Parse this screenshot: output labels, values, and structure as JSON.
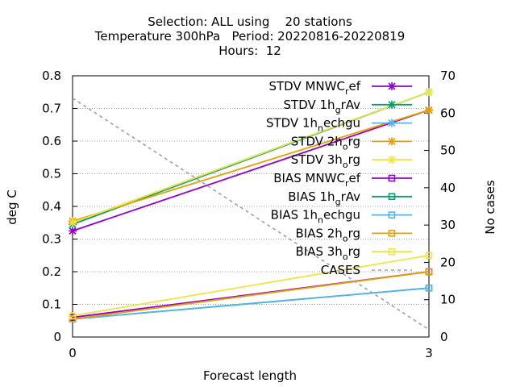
{
  "chart_data": {
    "type": "line",
    "title_lines": [
      "Selection: ALL using    20 stations",
      "Temperature 300hPa   Period: 20220816-20220819",
      "Hours:  12"
    ],
    "xlabel": "Forecast length",
    "ylabel": "deg C",
    "y2label": "No cases",
    "x": [
      0,
      3
    ],
    "xticks": [
      "0",
      "3"
    ],
    "ylim": [
      0,
      0.8
    ],
    "yticks": [
      "0",
      "0.1",
      "0.2",
      "0.3",
      "0.4",
      "0.5",
      "0.6",
      "0.7",
      "0.8"
    ],
    "y2lim": [
      0,
      70
    ],
    "y2ticks": [
      "0",
      "10",
      "20",
      "30",
      "40",
      "50",
      "60",
      "70"
    ],
    "grid": true,
    "legend_position": "top-right",
    "series": [
      {
        "name": "STDV MNWC_ref",
        "label": {
          "pre": "STDV MNWC",
          "sub": "r",
          "post": "ef"
        },
        "values": [
          0.325,
          0.695
        ],
        "color": "#9400d3",
        "marker": "x",
        "axis": "y1",
        "dash": false
      },
      {
        "name": "STDV 1h_grAv",
        "label": {
          "pre": "STDV 1h",
          "sub": "g",
          "post": "rAv"
        },
        "values": [
          0.345,
          0.75
        ],
        "color": "#009e73",
        "marker": "x",
        "axis": "y1",
        "dash": false
      },
      {
        "name": "STDV 1h_nechgu",
        "label": {
          "pre": "STDV 1h",
          "sub": "n",
          "post": "echgu"
        },
        "values": [
          0.35,
          0.75
        ],
        "color": "#56b4e9",
        "marker": "x",
        "axis": "y1",
        "dash": false
      },
      {
        "name": "STDV 2h_org",
        "label": {
          "pre": "STDV 2h",
          "sub": "o",
          "post": "rg"
        },
        "values": [
          0.355,
          0.695
        ],
        "color": "#e69f00",
        "marker": "x",
        "axis": "y1",
        "dash": false
      },
      {
        "name": "STDV 3h_org",
        "label": {
          "pre": "STDV 3h",
          "sub": "o",
          "post": "rg"
        },
        "values": [
          0.35,
          0.75
        ],
        "color": "#f0e442",
        "marker": "x",
        "axis": "y1",
        "dash": false
      },
      {
        "name": "BIAS MNWC_ref",
        "label": {
          "pre": "BIAS MNWC",
          "sub": "r",
          "post": "ef"
        },
        "values": [
          0.06,
          0.2
        ],
        "color": "#9400d3",
        "marker": "square",
        "axis": "y1",
        "dash": false
      },
      {
        "name": "BIAS 1h_grAv",
        "label": {
          "pre": "BIAS 1h",
          "sub": "g",
          "post": "rAv"
        },
        "values": [
          0.055,
          0.15
        ],
        "color": "#009e73",
        "marker": "square",
        "axis": "y1",
        "dash": false
      },
      {
        "name": "BIAS 1h_nechgu",
        "label": {
          "pre": "BIAS 1h",
          "sub": "n",
          "post": "echgu"
        },
        "values": [
          0.055,
          0.15
        ],
        "color": "#56b4e9",
        "marker": "square",
        "axis": "y1",
        "dash": false
      },
      {
        "name": "BIAS 2h_org",
        "label": {
          "pre": "BIAS 2h",
          "sub": "o",
          "post": "rg"
        },
        "values": [
          0.055,
          0.2
        ],
        "color": "#e69f00",
        "marker": "square",
        "axis": "y1",
        "dash": false
      },
      {
        "name": "BIAS 3h_org",
        "label": {
          "pre": "BIAS 3h",
          "sub": "o",
          "post": "rg"
        },
        "values": [
          0.065,
          0.25
        ],
        "color": "#f0e442",
        "marker": "square",
        "axis": "y1",
        "dash": false
      },
      {
        "name": "CASES",
        "label": {
          "pre": "CASES",
          "sub": "",
          "post": ""
        },
        "values": [
          64,
          2
        ],
        "color": "#a0a0a0",
        "marker": "none",
        "axis": "y2",
        "dash": true
      }
    ]
  }
}
